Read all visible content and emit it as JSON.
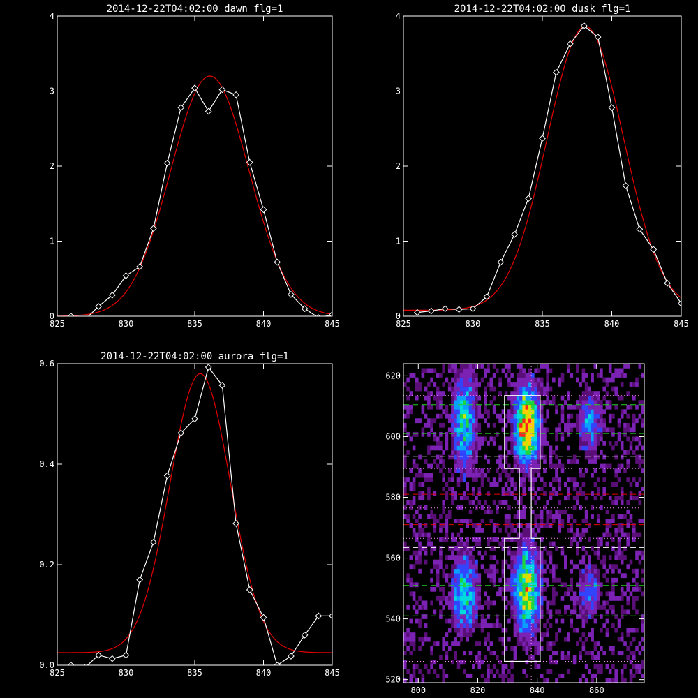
{
  "chart_data": [
    {
      "type": "line",
      "title": "2014-12-22T04:02:00 dawn flg=1",
      "xlim": [
        825,
        845
      ],
      "ylim": [
        0,
        4
      ],
      "xticks": [
        825,
        830,
        835,
        840,
        845
      ],
      "yticks": [
        0,
        1,
        2,
        3,
        4
      ],
      "series": [
        {
          "kind": "data",
          "color": "#ffffff",
          "marker": "diamond",
          "x": [
            826,
            827,
            828,
            829,
            830,
            831,
            832,
            833,
            834,
            835,
            836,
            837,
            838,
            839,
            840,
            841,
            842,
            843,
            844,
            845
          ],
          "y": [
            0.0,
            -0.05,
            0.13,
            0.28,
            0.54,
            0.66,
            1.17,
            2.04,
            2.78,
            3.04,
            2.73,
            3.02,
            2.95,
            2.05,
            1.42,
            0.72,
            0.29,
            0.1,
            -0.02,
            0.02
          ]
        },
        {
          "kind": "fit",
          "color": "#e60000",
          "gaussian": {
            "amplitude": 3.2,
            "center": 836.1,
            "sigma": 2.85,
            "offset": 0.0
          }
        }
      ]
    },
    {
      "type": "line",
      "title": "2014-12-22T04:02:00 dusk flg=1",
      "xlim": [
        825,
        845
      ],
      "ylim": [
        0,
        4
      ],
      "xticks": [
        825,
        830,
        835,
        840,
        845
      ],
      "yticks": [
        0,
        1,
        2,
        3,
        4
      ],
      "series": [
        {
          "kind": "data",
          "color": "#ffffff",
          "marker": "diamond",
          "x": [
            826,
            827,
            828,
            829,
            830,
            831,
            832,
            833,
            834,
            835,
            836,
            837,
            838,
            839,
            840,
            841,
            842,
            843,
            844,
            845
          ],
          "y": [
            0.05,
            0.07,
            0.1,
            0.09,
            0.1,
            0.26,
            0.72,
            1.09,
            1.57,
            2.37,
            3.25,
            3.63,
            3.87,
            3.72,
            2.78,
            1.74,
            1.16,
            0.89,
            0.44,
            0.17
          ]
        },
        {
          "kind": "fit",
          "color": "#e60000",
          "gaussian": {
            "amplitude": 3.78,
            "center": 838.1,
            "sigma": 2.75,
            "offset": 0.08
          }
        }
      ]
    },
    {
      "type": "line",
      "title": "2014-12-22T04:02:00 aurora flg=1",
      "xlim": [
        825,
        845
      ],
      "ylim": [
        0,
        0.6
      ],
      "xticks": [
        825,
        830,
        835,
        840,
        845
      ],
      "yticks": [
        0.0,
        0.2,
        0.4,
        0.6
      ],
      "ytick_labels": [
        "0.0",
        "0.2",
        "0.4",
        "0.6"
      ],
      "series": [
        {
          "kind": "data",
          "color": "#ffffff",
          "marker": "diamond",
          "x": [
            826,
            827,
            828,
            829,
            830,
            831,
            832,
            833,
            834,
            835,
            836,
            837,
            838,
            839,
            840,
            841,
            842,
            843,
            844,
            845
          ],
          "y": [
            0.0,
            -0.005,
            0.02,
            0.013,
            0.02,
            0.17,
            0.245,
            0.377,
            0.462,
            0.49,
            0.593,
            0.557,
            0.282,
            0.15,
            0.095,
            0.0,
            0.018,
            0.06,
            0.098,
            0.098
          ]
        },
        {
          "kind": "fit",
          "color": "#e60000",
          "gaussian": {
            "amplitude": 0.555,
            "center": 835.4,
            "sigma": 2.2,
            "offset": 0.025
          }
        }
      ]
    },
    {
      "type": "heatmap",
      "title": "",
      "xlim": [
        795,
        876
      ],
      "ylim": [
        519,
        624
      ],
      "xticks": [
        800,
        820,
        840,
        860
      ],
      "yticks": [
        520,
        540,
        560,
        580,
        600,
        620
      ],
      "colormap": [
        "#000000",
        "#5a0f78",
        "#7b22b5",
        "#3344ff",
        "#0aa0ff",
        "#00dcdc",
        "#1fd640",
        "#c8e600",
        "#ffcc00",
        "#ff2020"
      ],
      "emission_blobs": [
        {
          "x": 815,
          "y": 604,
          "sx": 2.4,
          "sy": 9.5,
          "peak": 0.55
        },
        {
          "x": 815,
          "y": 548,
          "sx": 2.6,
          "sy": 7.5,
          "peak": 0.55
        },
        {
          "x": 836,
          "y": 603,
          "sx": 2.6,
          "sy": 8.0,
          "peak": 1.0
        },
        {
          "x": 836,
          "y": 549,
          "sx": 2.6,
          "sy": 9.0,
          "peak": 0.78
        },
        {
          "x": 857,
          "y": 604,
          "sx": 2.4,
          "sy": 6.5,
          "peak": 0.32
        },
        {
          "x": 857,
          "y": 548,
          "sx": 2.4,
          "sy": 5.5,
          "peak": 0.28
        }
      ],
      "boxes": [
        {
          "color": "#ffffff",
          "outline": [
            [
              829,
              613.5
            ],
            [
              841,
              613.5
            ],
            [
              841,
              589.5
            ],
            [
              838,
              589.5
            ],
            [
              838,
              566.5
            ],
            [
              841,
              566.5
            ],
            [
              841,
              526
            ],
            [
              829,
              526
            ],
            [
              829,
              566.5
            ],
            [
              834,
              566.5
            ],
            [
              834,
              589.5
            ],
            [
              829,
              589.5
            ],
            [
              829,
              613.5
            ]
          ]
        }
      ],
      "hlines": [
        {
          "y": 613.5,
          "color": "#ff8cff",
          "style": "dotted"
        },
        {
          "y": 610.5,
          "color": "#22cc22",
          "style": "dashed"
        },
        {
          "y": 601.0,
          "color": "#22cc22",
          "style": "dashed"
        },
        {
          "y": 593.5,
          "color": "#ffffff",
          "style": "dashed"
        },
        {
          "y": 589.5,
          "color": "#ff8cff",
          "style": "dotted"
        },
        {
          "y": 581.0,
          "color": "#e60000",
          "style": "dashed"
        },
        {
          "y": 576.5,
          "color": "#ff8cff",
          "style": "dotted"
        },
        {
          "y": 571.0,
          "color": "#e60000",
          "style": "dashed"
        },
        {
          "y": 566.5,
          "color": "#ff8cff",
          "style": "dotted"
        },
        {
          "y": 563.5,
          "color": "#ffffff",
          "style": "dashed"
        },
        {
          "y": 551.0,
          "color": "#22cc22",
          "style": "dashed"
        },
        {
          "y": 541.0,
          "color": "#22cc22",
          "style": "dashed"
        },
        {
          "y": 526.0,
          "color": "#ff8cff",
          "style": "dotted"
        }
      ],
      "vlines": [
        {
          "x": 836.2,
          "color": "#ff8cff",
          "style": "dotted"
        },
        {
          "x": 838.0,
          "color": "#ff8cff",
          "style": "dotted"
        }
      ]
    }
  ]
}
